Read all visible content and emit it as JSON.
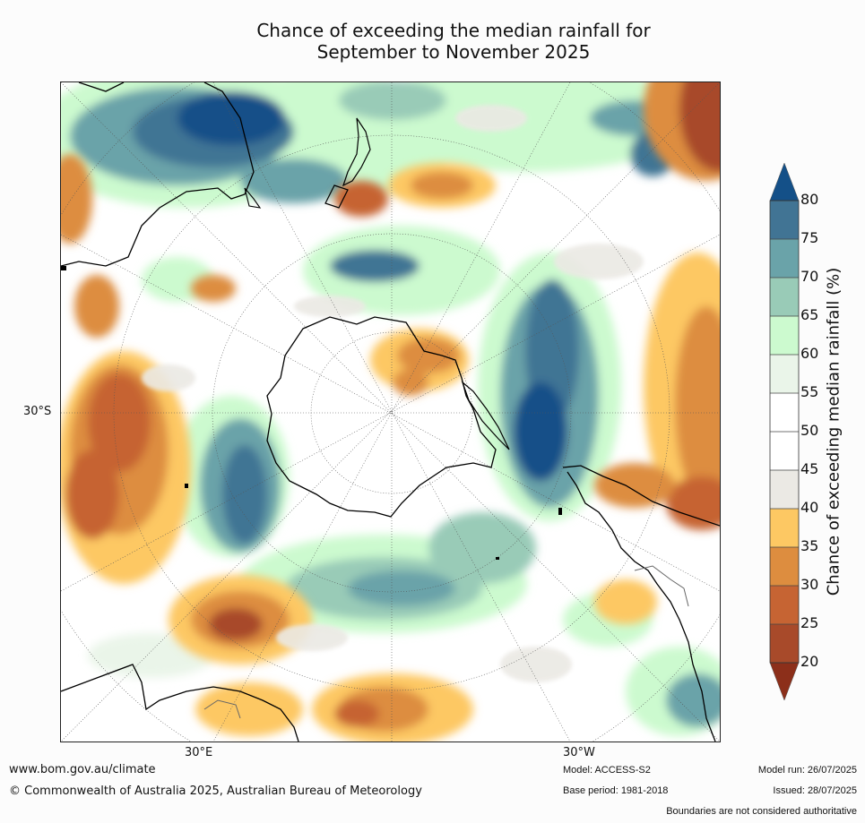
{
  "title_line1": "Chance of exceeding the median rainfall for",
  "title_line2": "September to November 2025",
  "labels": {
    "lat_left": "30°S",
    "lon_left": "30°E",
    "lon_right": "30°W"
  },
  "colorbar": {
    "title": "Chance of exceeding median rainfall (%)",
    "ticks": [
      "20",
      "25",
      "30",
      "35",
      "40",
      "45",
      "50",
      "55",
      "60",
      "65",
      "70",
      "75",
      "80"
    ],
    "colors": {
      "lt20": "#8c2f1a",
      "20_25": "#a84a2a",
      "25_30": "#c66433",
      "30_35": "#dd8d3f",
      "35_40": "#fdc863",
      "40_45": "#ebe9e4",
      "45_55": "#ffffff",
      "55_60": "#eaf5e9",
      "60_65": "#ccfacf",
      "65_70": "#99cbb7",
      "70_75": "#6aa3a9",
      "75_80": "#417494",
      "gt80": "#145088"
    }
  },
  "footer": {
    "url": "www.bom.gov.au/climate",
    "copyright": "© Commonwealth of Australia 2025, Australian Bureau of Meteorology",
    "model": "Model: ACCESS-S2",
    "base": "Base period: 1981-2018",
    "run": "Model run: 26/07/2025",
    "issued": "Issued: 28/07/2025",
    "disclaimer": "Boundaries are not considered authoritative"
  }
}
